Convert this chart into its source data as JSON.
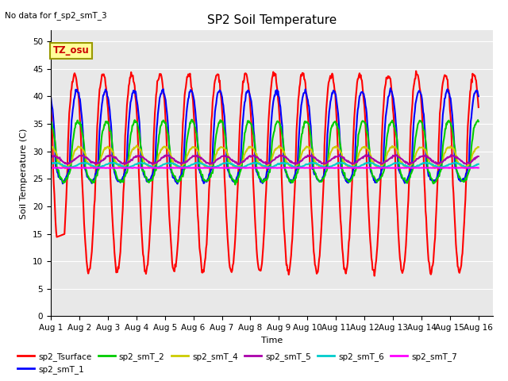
{
  "title": "SP2 Soil Temperature",
  "xlabel": "Time",
  "ylabel": "Soil Temperature (C)",
  "note": "No data for f_sp2_smT_3",
  "tz_label": "TZ_osu",
  "ylim": [
    0,
    52
  ],
  "yticks": [
    0,
    5,
    10,
    15,
    20,
    25,
    30,
    35,
    40,
    45,
    50
  ],
  "xlim_days": 15.5,
  "x_tick_labels": [
    "Aug 1",
    "Aug 2",
    "Aug 3",
    "Aug 4",
    "Aug 5",
    "Aug 6",
    "Aug 7",
    "Aug 8",
    "Aug 9",
    "Aug 10",
    "Aug 11",
    "Aug 12",
    "Aug 13",
    "Aug 14",
    "Aug 15",
    "Aug 16"
  ],
  "series_order": [
    "sp2_Tsurface",
    "sp2_smT_1",
    "sp2_smT_2",
    "sp2_smT_4",
    "sp2_smT_5",
    "sp2_smT_6",
    "sp2_smT_7"
  ],
  "series": {
    "sp2_Tsurface": {
      "color": "#ff0000",
      "lw": 1.5
    },
    "sp2_smT_1": {
      "color": "#0000ff",
      "lw": 1.5
    },
    "sp2_smT_2": {
      "color": "#00cc00",
      "lw": 1.5
    },
    "sp2_smT_4": {
      "color": "#cccc00",
      "lw": 1.5
    },
    "sp2_smT_5": {
      "color": "#aa00aa",
      "lw": 1.5
    },
    "sp2_smT_6": {
      "color": "#00cccc",
      "lw": 1.5
    },
    "sp2_smT_7": {
      "color": "#ff00ff",
      "lw": 1.5
    }
  },
  "bg_color": "#e8e8e8",
  "grid_color": "#ffffff",
  "title_fontsize": 11,
  "label_fontsize": 8,
  "tick_fontsize": 7.5
}
